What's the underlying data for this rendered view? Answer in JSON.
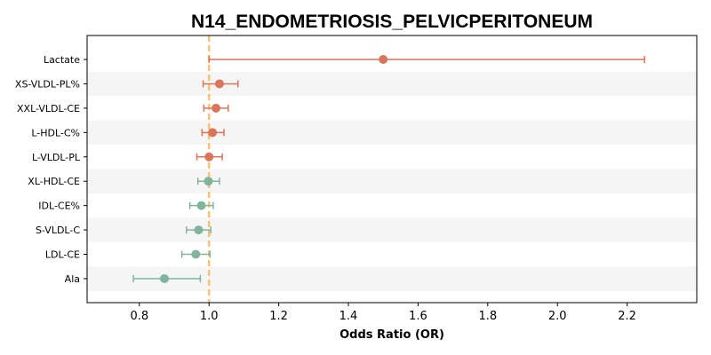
{
  "chart_data": {
    "type": "scatter",
    "subtype": "forest-plot",
    "title": "N14_ENDOMETRIOSIS_PELVICPERITONEUM",
    "xlabel": "Odds Ratio (OR)",
    "ylabel": "",
    "xlim": [
      0.65,
      2.4
    ],
    "xticks": [
      0.8,
      1.0,
      1.2,
      1.4,
      1.6,
      1.8,
      2.0,
      2.2
    ],
    "xtick_labels": [
      "0.8",
      "1.0",
      "1.2",
      "1.4",
      "1.6",
      "1.8",
      "2.0",
      "2.2"
    ],
    "reference_line": 1.0,
    "reference_color": "#f5c27a",
    "grid": false,
    "alternating_row_shading": true,
    "shade_color": "#f5f5f5",
    "colors": {
      "risk": "#d9755a",
      "protective": "#82b39c"
    },
    "rows": [
      {
        "label": "Lactate",
        "or": 1.5,
        "lo": 1.0,
        "hi": 2.25,
        "group": "risk"
      },
      {
        "label": "XS-VLDL-PL%",
        "or": 1.03,
        "lo": 0.983,
        "hi": 1.083,
        "group": "risk"
      },
      {
        "label": "XXL-VLDL-CE",
        "or": 1.02,
        "lo": 0.985,
        "hi": 1.055,
        "group": "risk"
      },
      {
        "label": "L-HDL-C%",
        "or": 1.01,
        "lo": 0.98,
        "hi": 1.043,
        "group": "risk"
      },
      {
        "label": "L-VLDL-PL",
        "or": 1.0,
        "lo": 0.965,
        "hi": 1.038,
        "group": "risk"
      },
      {
        "label": "XL-HDL-CE",
        "or": 0.998,
        "lo": 0.968,
        "hi": 1.03,
        "group": "protective"
      },
      {
        "label": "IDL-CE%",
        "or": 0.978,
        "lo": 0.945,
        "hi": 1.012,
        "group": "protective"
      },
      {
        "label": "S-VLDL-C",
        "or": 0.97,
        "lo": 0.935,
        "hi": 1.005,
        "group": "protective"
      },
      {
        "label": "LDL-CE",
        "or": 0.962,
        "lo": 0.922,
        "hi": 1.003,
        "group": "protective"
      },
      {
        "label": "Ala",
        "or": 0.872,
        "lo": 0.783,
        "hi": 0.975,
        "group": "protective"
      }
    ]
  }
}
